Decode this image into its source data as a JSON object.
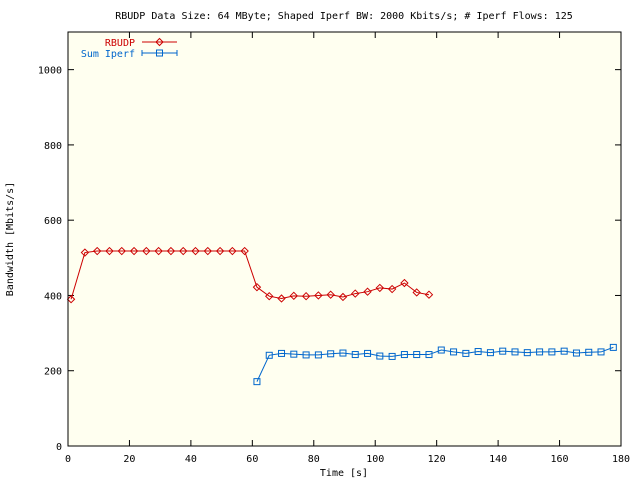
{
  "chart_data": {
    "type": "line",
    "title": "RBUDP Data Size: 64 MByte; Shaped Iperf BW: 2000 Kbits/s; # Iperf Flows: 125",
    "xlabel": "Time [s]",
    "ylabel": "Bandwidth [Mbits/s]",
    "xlim": [
      0,
      180
    ],
    "ylim": [
      0,
      1100
    ],
    "xticks": [
      0,
      20,
      40,
      60,
      80,
      100,
      120,
      140,
      160,
      180
    ],
    "yticks": [
      0,
      200,
      400,
      600,
      800,
      1000
    ],
    "grid": false,
    "legend_position": "top-left",
    "background": "#fffff0",
    "series": [
      {
        "name": "RBUDP",
        "color": "#cc0000",
        "marker": "diamond",
        "x": [
          1,
          5.5,
          9.5,
          13.5,
          17.5,
          21.5,
          25.5,
          29.5,
          33.5,
          37.5,
          41.5,
          45.5,
          49.5,
          53.5,
          57.5,
          61.5,
          65.5,
          69.5,
          73.5,
          77.5,
          81.5,
          85.5,
          89.5,
          93.5,
          97.5,
          101.5,
          105.5,
          109.5,
          113.5,
          117.5
        ],
        "y": [
          390,
          514,
          518,
          518,
          518,
          518,
          518,
          518,
          518,
          518,
          518,
          518,
          518,
          518,
          518,
          422,
          398,
          392,
          399,
          398,
          400,
          402,
          396,
          405,
          410,
          420,
          417,
          433,
          408,
          402
        ]
      },
      {
        "name": "Sum Iperf",
        "color": "#0066cc",
        "marker": "square",
        "x": [
          61.5,
          65.5,
          69.5,
          73.5,
          77.5,
          81.5,
          85.5,
          89.5,
          93.5,
          97.5,
          101.5,
          105.5,
          109.5,
          113.5,
          117.5,
          121.5,
          125.5,
          129.5,
          133.5,
          137.5,
          141.5,
          145.5,
          149.5,
          153.5,
          157.5,
          161.5,
          165.5,
          169.5,
          173.5,
          177.5
        ],
        "y": [
          171,
          241,
          246,
          244,
          242,
          242,
          245,
          247,
          243,
          246,
          239,
          238,
          243,
          243,
          243,
          255,
          250,
          246,
          251,
          248,
          252,
          250,
          248,
          250,
          250,
          252,
          247,
          249,
          250,
          262
        ]
      }
    ]
  }
}
